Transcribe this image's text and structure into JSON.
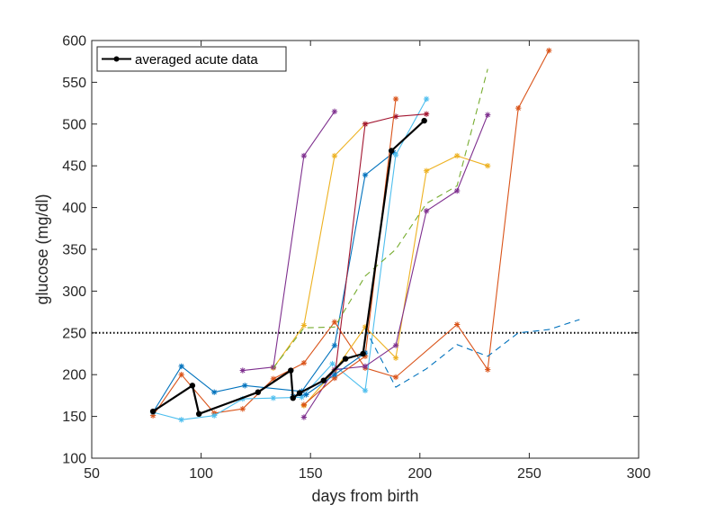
{
  "chart_data": {
    "type": "line",
    "title": "",
    "xlabel": "days from birth",
    "ylabel": "glucose (mg/dl)",
    "xlim": [
      50,
      300
    ],
    "ylim": [
      100,
      600
    ],
    "xticks": [
      50,
      100,
      150,
      200,
      250,
      300
    ],
    "yticks": [
      100,
      150,
      200,
      250,
      300,
      350,
      400,
      450,
      500,
      550,
      600
    ],
    "grid": false,
    "legend": {
      "placement": "top-left",
      "entries": [
        "averaged acute data"
      ]
    },
    "threshold": {
      "y": 250,
      "style": "dotted",
      "color": "#000000"
    },
    "series": [
      {
        "color": "#0072BD",
        "style": "solid",
        "marker": "star",
        "x": [
          78,
          91,
          106,
          120,
          146,
          161,
          175,
          188
        ],
        "y": [
          155,
          210,
          179,
          187,
          180,
          235,
          439,
          466
        ]
      },
      {
        "color": "#D95319",
        "style": "solid",
        "marker": "star",
        "x": [
          78,
          91,
          106,
          119,
          133,
          147,
          161,
          175,
          189,
          217,
          231,
          245,
          259
        ],
        "y": [
          151,
          200,
          154,
          159,
          195,
          214,
          263,
          208,
          197,
          260,
          206,
          519,
          588
        ]
      },
      {
        "color": "#EDB120",
        "style": "solid",
        "marker": "star",
        "x": [
          133,
          147,
          161,
          175
        ],
        "y": [
          208,
          259,
          462,
          500
        ]
      },
      {
        "color": "#7E2F8E",
        "style": "solid",
        "marker": "star",
        "x": [
          119,
          133,
          147,
          161
        ],
        "y": [
          205,
          209,
          462,
          515
        ]
      },
      {
        "color": "#4DBEEE",
        "style": "solid",
        "marker": "star",
        "x": [
          78,
          91,
          106,
          119,
          133,
          146,
          160,
          175,
          189,
          203
        ],
        "y": [
          155,
          146,
          151,
          171,
          172,
          173,
          213,
          181,
          463,
          530
        ]
      },
      {
        "color": "#A2142F",
        "style": "solid",
        "marker": "star",
        "x": [
          161,
          175,
          189,
          203
        ],
        "y": [
          196,
          500,
          509,
          512
        ]
      },
      {
        "color": "#EDB120",
        "style": "solid",
        "marker": "star",
        "x": [
          147,
          161,
          175,
          189,
          203,
          217,
          231
        ],
        "y": [
          163,
          205,
          257,
          220,
          444,
          462,
          450
        ]
      },
      {
        "color": "#7E2F8E",
        "style": "solid",
        "marker": "star",
        "x": [
          147,
          161,
          175,
          189,
          203,
          217,
          231
        ],
        "y": [
          149,
          206,
          210,
          235,
          396,
          420,
          511
        ]
      },
      {
        "color": "#D95319",
        "style": "solid",
        "marker": "star",
        "x": [
          147,
          161,
          175,
          189
        ],
        "y": [
          164,
          196,
          222,
          530
        ]
      },
      {
        "color": "#0072BD",
        "style": "solid",
        "marker": "star",
        "x": [
          142,
          148,
          161,
          175
        ],
        "y": [
          174,
          176,
          200,
          226
        ]
      },
      {
        "color": "#77AC30",
        "style": "dashed",
        "marker": "none",
        "x": [
          133,
          147,
          161,
          175,
          189,
          203,
          217,
          231
        ],
        "y": [
          208,
          256,
          257,
          318,
          350,
          405,
          426,
          566
        ]
      },
      {
        "color": "#0072BD",
        "style": "dashed",
        "marker": "none",
        "x": [
          175,
          189,
          203,
          217,
          231,
          245,
          259,
          273
        ],
        "y": [
          255,
          185,
          207,
          236,
          222,
          250,
          254,
          266
        ]
      },
      {
        "name": "averaged acute data",
        "color": "#000000",
        "style": "solid",
        "marker": "dot",
        "bold": true,
        "x": [
          78,
          96,
          99,
          126,
          141,
          142,
          145,
          156,
          166,
          174,
          187,
          202
        ],
        "y": [
          156,
          187,
          153,
          179,
          205,
          172,
          178,
          193,
          219,
          225,
          468,
          504
        ]
      }
    ]
  }
}
